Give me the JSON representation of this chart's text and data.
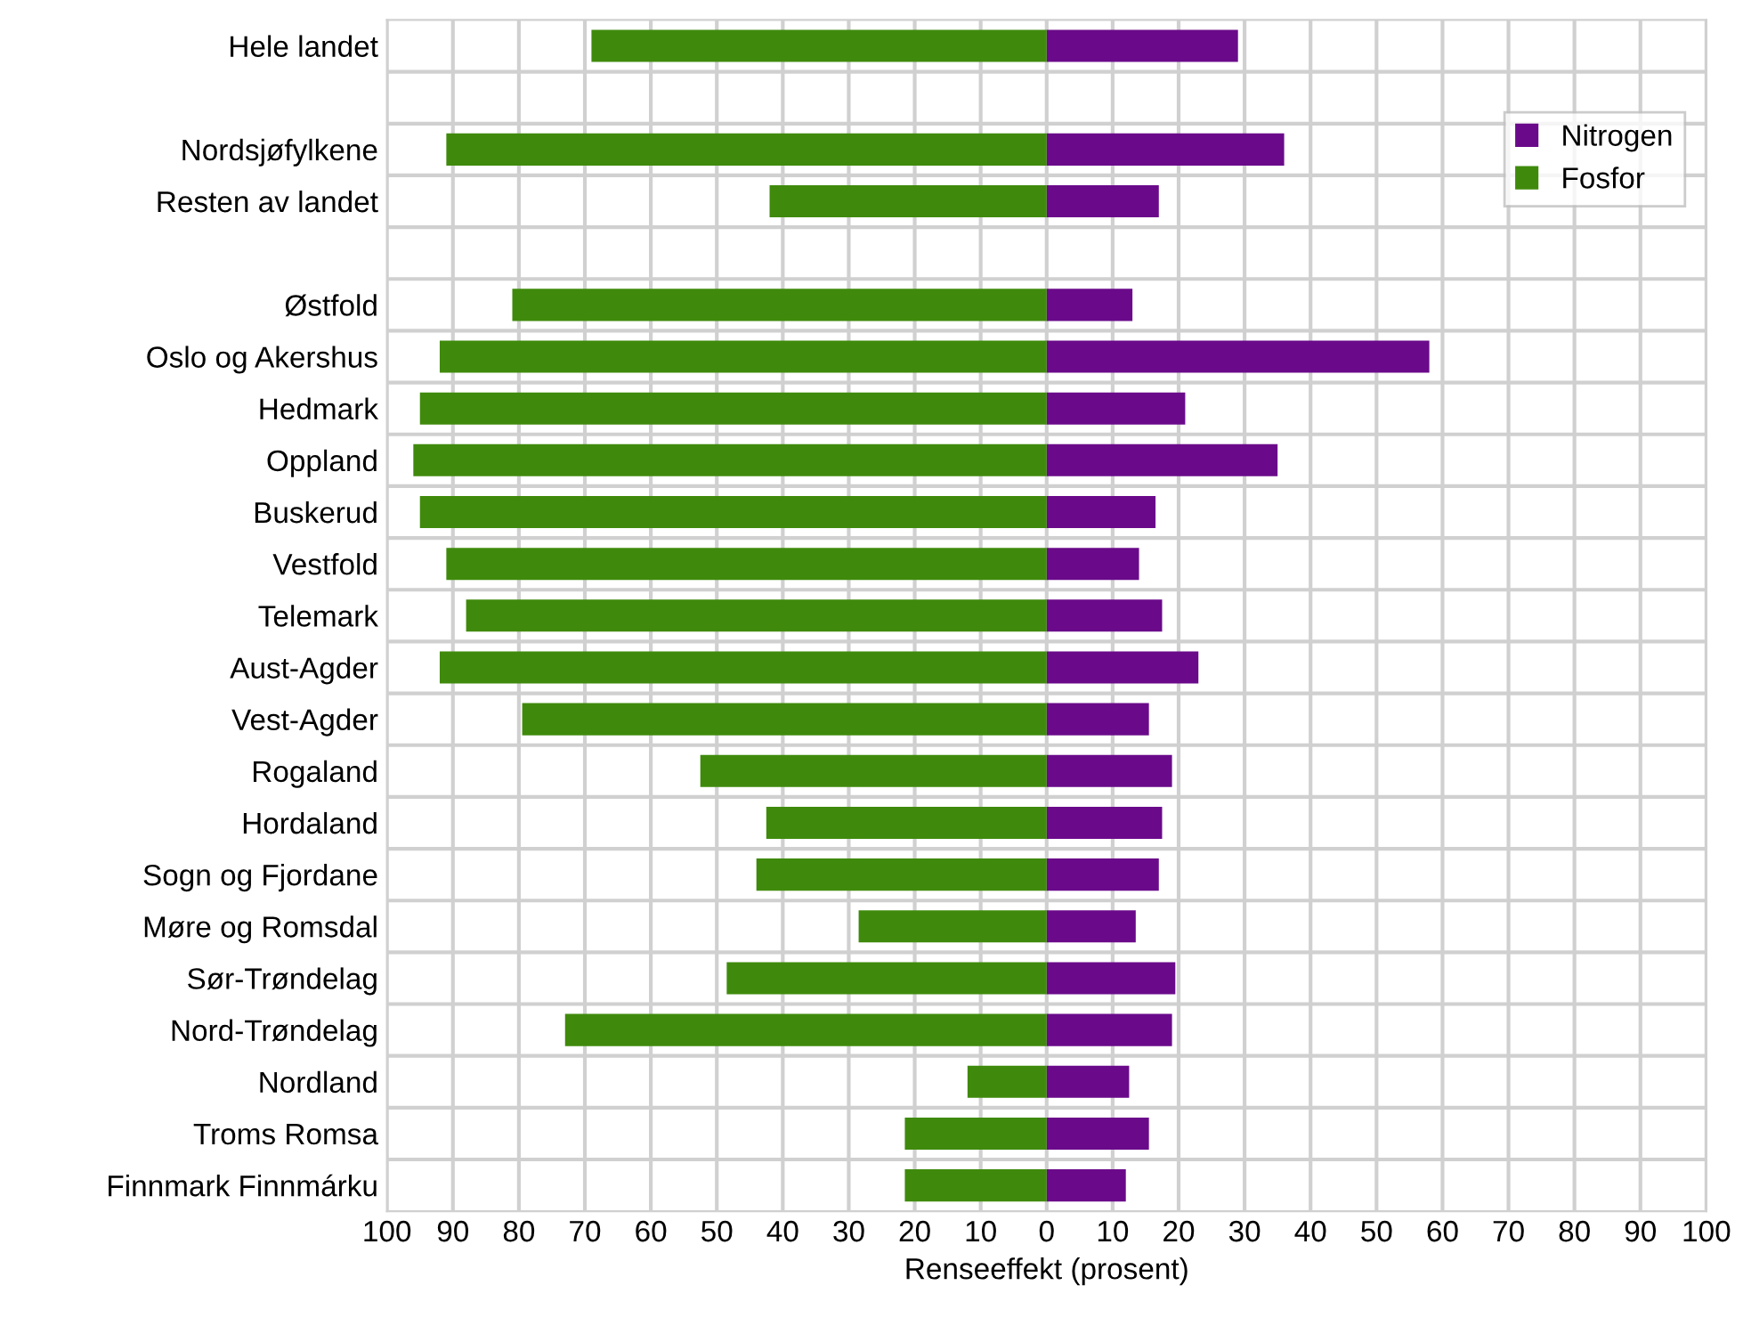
{
  "chart_data": {
    "type": "bar",
    "orientation": "horizontal",
    "xlabel": "Renseeffekt (prosent)",
    "categories": [
      "Hele landet",
      null,
      "Nordsjøfylkene",
      "Resten av landet",
      null,
      "Østfold",
      "Oslo og Akershus",
      "Hedmark",
      "Oppland",
      "Buskerud",
      "Vestfold",
      "Telemark",
      "Aust-Agder",
      "Vest-Agder",
      "Rogaland",
      "Hordaland",
      "Sogn og Fjordane",
      "Møre og Romsdal",
      "Sør-Trøndelag",
      "Nord-Trøndelag",
      "Nordland",
      "Troms Romsa",
      "Finnmark Finnmárku"
    ],
    "series": [
      {
        "name": "Nitrogen",
        "color": "#6a0a8a",
        "values": [
          29,
          null,
          36,
          17,
          null,
          13,
          58,
          21,
          35,
          16.5,
          14,
          17.5,
          23,
          15.5,
          19,
          17.5,
          17,
          13.5,
          19.5,
          19,
          12.5,
          15.5,
          12
        ]
      },
      {
        "name": "Fosfor",
        "color": "#3f8a0c",
        "values": [
          -69,
          null,
          -91,
          -42,
          null,
          -81,
          -92,
          -95,
          -96,
          -95,
          -91,
          -88,
          -92,
          -79.5,
          -52.5,
          -42.5,
          -44,
          -28.5,
          -48.5,
          -73,
          -12,
          -21.5,
          -21.5
        ]
      }
    ],
    "xlim": [
      -100,
      100
    ],
    "xticks": [
      {
        "value": -100,
        "label": "100"
      },
      {
        "value": -90,
        "label": "90"
      },
      {
        "value": -80,
        "label": "80"
      },
      {
        "value": -70,
        "label": "70"
      },
      {
        "value": -60,
        "label": "60"
      },
      {
        "value": -50,
        "label": "50"
      },
      {
        "value": -40,
        "label": "40"
      },
      {
        "value": -30,
        "label": "30"
      },
      {
        "value": -20,
        "label": "20"
      },
      {
        "value": -10,
        "label": "10"
      },
      0,
      10,
      20,
      30,
      40,
      50,
      60,
      70,
      80,
      90,
      100
    ],
    "stacked": true,
    "grid": true,
    "legend": "top right"
  }
}
